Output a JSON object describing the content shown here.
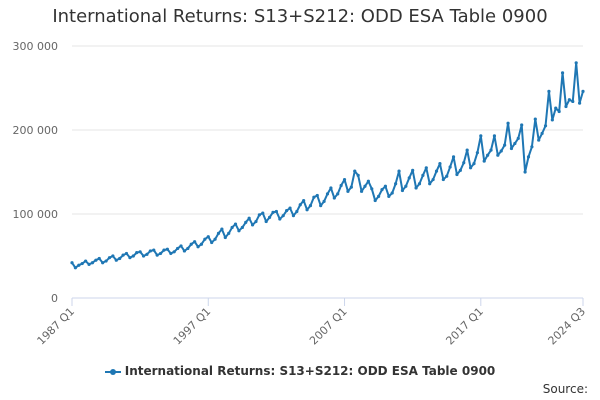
{
  "chart_data": {
    "type": "line",
    "title": "International Returns: S13+S212: ODD ESA Table 0900",
    "xlabel": "",
    "ylabel": "",
    "x_tick_labels": [
      "1987 Q1",
      "1997 Q1",
      "2007 Q1",
      "2017 Q1",
      "2024 Q3"
    ],
    "y_tick_labels": [
      "0",
      "100 000",
      "200 000",
      "300 000"
    ],
    "y_ticks": [
      0,
      100000,
      200000,
      300000
    ],
    "ylim": [
      0,
      300000
    ],
    "grid": true,
    "legend_position": "bottom",
    "series_color": "#1f77b4",
    "series": [
      {
        "name": "International Returns: S13+S212: ODD ESA Table 0900",
        "x": [
          "1987 Q1",
          "1987 Q2",
          "1987 Q3",
          "1987 Q4",
          "1988 Q1",
          "1988 Q2",
          "1988 Q3",
          "1988 Q4",
          "1989 Q1",
          "1989 Q2",
          "1989 Q3",
          "1989 Q4",
          "1990 Q1",
          "1990 Q2",
          "1990 Q3",
          "1990 Q4",
          "1991 Q1",
          "1991 Q2",
          "1991 Q3",
          "1991 Q4",
          "1992 Q1",
          "1992 Q2",
          "1992 Q3",
          "1992 Q4",
          "1993 Q1",
          "1993 Q2",
          "1993 Q3",
          "1993 Q4",
          "1994 Q1",
          "1994 Q2",
          "1994 Q3",
          "1994 Q4",
          "1995 Q1",
          "1995 Q2",
          "1995 Q3",
          "1995 Q4",
          "1996 Q1",
          "1996 Q2",
          "1996 Q3",
          "1996 Q4",
          "1997 Q1",
          "1997 Q2",
          "1997 Q3",
          "1997 Q4",
          "1998 Q1",
          "1998 Q2",
          "1998 Q3",
          "1998 Q4",
          "1999 Q1",
          "1999 Q2",
          "1999 Q3",
          "1999 Q4",
          "2000 Q1",
          "2000 Q2",
          "2000 Q3",
          "2000 Q4",
          "2001 Q1",
          "2001 Q2",
          "2001 Q3",
          "2001 Q4",
          "2002 Q1",
          "2002 Q2",
          "2002 Q3",
          "2002 Q4",
          "2003 Q1",
          "2003 Q2",
          "2003 Q3",
          "2003 Q4",
          "2004 Q1",
          "2004 Q2",
          "2004 Q3",
          "2004 Q4",
          "2005 Q1",
          "2005 Q2",
          "2005 Q3",
          "2005 Q4",
          "2006 Q1",
          "2006 Q2",
          "2006 Q3",
          "2006 Q4",
          "2007 Q1",
          "2007 Q2",
          "2007 Q3",
          "2007 Q4",
          "2008 Q1",
          "2008 Q2",
          "2008 Q3",
          "2008 Q4",
          "2009 Q1",
          "2009 Q2",
          "2009 Q3",
          "2009 Q4",
          "2010 Q1",
          "2010 Q2",
          "2010 Q3",
          "2010 Q4",
          "2011 Q1",
          "2011 Q2",
          "2011 Q3",
          "2011 Q4",
          "2012 Q1",
          "2012 Q2",
          "2012 Q3",
          "2012 Q4",
          "2013 Q1",
          "2013 Q2",
          "2013 Q3",
          "2013 Q4",
          "2014 Q1",
          "2014 Q2",
          "2014 Q3",
          "2014 Q4",
          "2015 Q1",
          "2015 Q2",
          "2015 Q3",
          "2015 Q4",
          "2016 Q1",
          "2016 Q2",
          "2016 Q3",
          "2016 Q4",
          "2017 Q1",
          "2017 Q2",
          "2017 Q3",
          "2017 Q4",
          "2018 Q1",
          "2018 Q2",
          "2018 Q3",
          "2018 Q4",
          "2019 Q1",
          "2019 Q2",
          "2019 Q3",
          "2019 Q4",
          "2020 Q1",
          "2020 Q2",
          "2020 Q3",
          "2020 Q4",
          "2021 Q1",
          "2021 Q2",
          "2021 Q3",
          "2021 Q4",
          "2022 Q1",
          "2022 Q2",
          "2022 Q3",
          "2022 Q4",
          "2023 Q1",
          "2023 Q2",
          "2023 Q3",
          "2023 Q4",
          "2024 Q1",
          "2024 Q2",
          "2024 Q3"
        ],
        "values": [
          42000,
          36000,
          39000,
          41000,
          44000,
          40000,
          42000,
          45000,
          47000,
          42000,
          44000,
          48000,
          50000,
          45000,
          47000,
          51000,
          53000,
          48000,
          50000,
          54000,
          55000,
          50000,
          52000,
          56000,
          57000,
          51000,
          53000,
          57000,
          58000,
          53000,
          55000,
          59000,
          62000,
          56000,
          59000,
          64000,
          67000,
          61000,
          64000,
          70000,
          73000,
          66000,
          70000,
          77000,
          82000,
          72000,
          77000,
          84000,
          88000,
          80000,
          84000,
          90000,
          95000,
          87000,
          91000,
          99000,
          101000,
          91000,
          96000,
          102000,
          103000,
          94000,
          98000,
          104000,
          107000,
          98000,
          103000,
          111000,
          116000,
          105000,
          110000,
          120000,
          122000,
          110000,
          115000,
          124000,
          131000,
          119000,
          124000,
          134000,
          141000,
          127000,
          132000,
          151000,
          146000,
          127000,
          133000,
          139000,
          130000,
          116000,
          121000,
          129000,
          133000,
          121000,
          125000,
          136000,
          151000,
          128000,
          133000,
          143000,
          152000,
          131000,
          136000,
          146000,
          155000,
          136000,
          141000,
          151000,
          160000,
          141000,
          145000,
          156000,
          168000,
          147000,
          152000,
          161000,
          176000,
          155000,
          160000,
          173000,
          193000,
          163000,
          170000,
          176000,
          193000,
          170000,
          175000,
          182000,
          208000,
          178000,
          184000,
          190000,
          206000,
          150000,
          168000,
          180000,
          213000,
          188000,
          196000,
          205000,
          246000,
          212000,
          226000,
          222000,
          268000,
          228000,
          236000,
          234000,
          280000,
          232000,
          246000
        ]
      }
    ],
    "source_label": "Source:"
  }
}
